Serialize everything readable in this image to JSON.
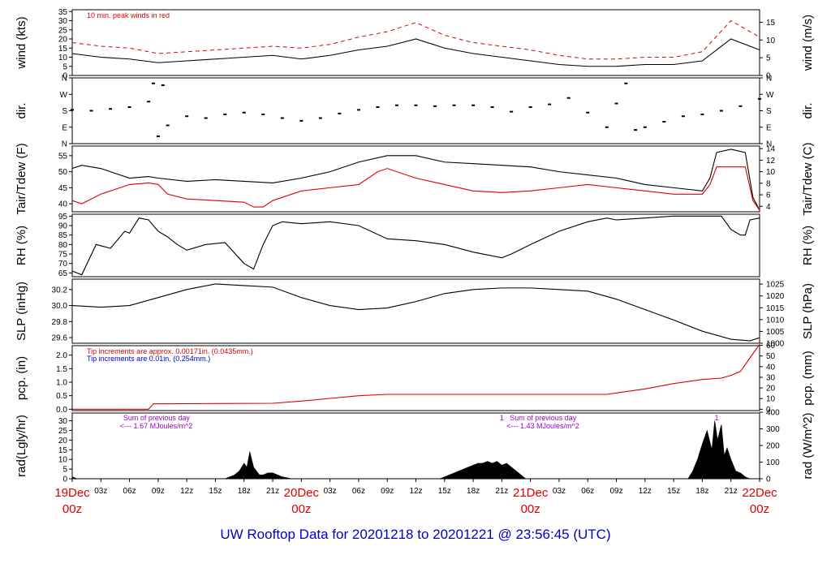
{
  "footer_title": "UW Rooftop Data for 20201218  to  20201221 @ 23:56:45  (UTC)",
  "colors": {
    "red": "#dd0000",
    "blue": "#0000cc",
    "purple": "#9900cc",
    "black": "#000000"
  },
  "time_axis": {
    "ticks_hours": [
      0,
      3,
      6,
      9,
      12,
      15,
      18,
      21,
      24,
      27,
      30,
      33,
      36,
      39,
      42,
      45,
      48,
      51,
      54,
      57,
      60,
      63,
      66,
      69,
      72
    ],
    "minor_labels": [
      "03z",
      "06z",
      "09z",
      "12z",
      "15z",
      "18z",
      "21z",
      "03z",
      "06z",
      "09z",
      "12z",
      "15z",
      "18z",
      "21z",
      "03z",
      "06z",
      "09z",
      "12z",
      "15z",
      "18z",
      "21z"
    ],
    "day_labels": [
      {
        "hour": 0,
        "date": "19Dec",
        "time": "00z"
      },
      {
        "hour": 24,
        "date": "20Dec",
        "time": "00z"
      },
      {
        "hour": 48,
        "date": "21Dec",
        "time": "00z"
      },
      {
        "hour": 72,
        "date": "22Dec",
        "time": "00z"
      }
    ]
  },
  "chart_data": [
    {
      "type": "line",
      "name": "wind",
      "ylabel": "wind (kts)",
      "ylabel_right": "wind (m/s)",
      "yticks": [
        0,
        5,
        10,
        15,
        20,
        25,
        30,
        35
      ],
      "yticks_right": [
        0,
        5,
        10,
        15
      ],
      "ylim": [
        0,
        36
      ],
      "note": "10 min. peak winds in red",
      "series": [
        {
          "color": "#000000",
          "x": [
            0,
            3,
            6,
            9,
            12,
            15,
            18,
            21,
            24,
            27,
            30,
            33,
            36,
            39,
            42,
            45,
            48,
            51,
            54,
            57,
            60,
            63,
            66,
            69,
            72
          ],
          "y": [
            12,
            10,
            9,
            7,
            8,
            9,
            10,
            11,
            9,
            11,
            14,
            16,
            20,
            15,
            12,
            10,
            8,
            6,
            5,
            5,
            6,
            6,
            8,
            20,
            14
          ]
        },
        {
          "name": "peak",
          "color": "#dd0000",
          "x": [
            0,
            3,
            6,
            9,
            12,
            15,
            18,
            21,
            24,
            27,
            30,
            33,
            36,
            39,
            42,
            45,
            48,
            51,
            54,
            57,
            60,
            63,
            66,
            69,
            72
          ],
          "y": [
            18,
            16,
            15,
            12,
            13,
            14,
            15,
            16,
            15,
            17,
            21,
            24,
            29,
            22,
            18,
            16,
            14,
            11,
            9,
            9,
            10,
            10,
            13,
            30,
            21
          ]
        }
      ]
    },
    {
      "type": "scatter",
      "name": "direction",
      "ylabel": "dir.",
      "yticks_labels": [
        "N",
        "E",
        "S",
        "W",
        "N"
      ],
      "ylim": [
        0,
        360
      ],
      "series": [
        {
          "color": "#000000",
          "x": [
            0,
            2,
            4,
            6,
            8,
            8.5,
            9,
            9.5,
            10,
            12,
            14,
            16,
            18,
            20,
            22,
            24,
            26,
            28,
            30,
            32,
            34,
            36,
            38,
            40,
            42,
            44,
            46,
            48,
            50,
            52,
            54,
            56,
            57,
            58,
            59,
            60,
            62,
            64,
            66,
            68,
            70,
            72
          ],
          "y": [
            185,
            180,
            190,
            200,
            230,
            330,
            40,
            320,
            100,
            150,
            140,
            160,
            170,
            160,
            140,
            125,
            140,
            165,
            185,
            200,
            210,
            210,
            205,
            210,
            210,
            200,
            175,
            200,
            215,
            250,
            170,
            90,
            220,
            330,
            75,
            90,
            120,
            150,
            160,
            180,
            205,
            245
          ]
        }
      ]
    },
    {
      "type": "line",
      "name": "temperature",
      "ylabel": "Tair/Tdew (F)",
      "ylabel_right": "Tair/Tdew (C)",
      "yticks": [
        40,
        45,
        50,
        55
      ],
      "yticks_right": [
        4,
        6,
        8,
        10,
        12,
        14
      ],
      "ylim": [
        37.5,
        58
      ],
      "series": [
        {
          "name": "Tair",
          "color": "#000000",
          "x": [
            0,
            1,
            3,
            6,
            8,
            9,
            12,
            15,
            18,
            21,
            24,
            27,
            30,
            33,
            36,
            39,
            42,
            45,
            48,
            51,
            54,
            57,
            60,
            63,
            66,
            66.8,
            67.5,
            69,
            70.5,
            71.3,
            72
          ],
          "y": [
            51,
            52,
            51,
            48,
            48.5,
            48,
            47,
            47.5,
            47,
            46.5,
            48,
            50,
            53,
            55,
            55,
            53,
            52.5,
            52,
            51.5,
            50,
            49,
            48,
            46,
            45,
            44,
            48,
            56,
            57,
            56,
            42,
            38
          ]
        },
        {
          "name": "Tdew",
          "color": "#dd0000",
          "x": [
            0,
            1,
            3,
            6,
            8,
            9,
            10,
            12,
            15,
            18,
            19,
            20,
            21,
            24,
            27,
            30,
            32,
            33,
            36,
            39,
            42,
            45,
            48,
            51,
            54,
            57,
            60,
            63,
            66,
            66.8,
            67.5,
            69,
            70.5,
            71.3,
            72
          ],
          "y": [
            41,
            40,
            43,
            46,
            46.5,
            46,
            43,
            41.5,
            41,
            40.5,
            39,
            39,
            41,
            44,
            45,
            46,
            50,
            51,
            48,
            46,
            44,
            43.5,
            44,
            45,
            46,
            45,
            44,
            43,
            43,
            46,
            51.5,
            51.5,
            51.5,
            41,
            38
          ]
        }
      ]
    },
    {
      "type": "line",
      "name": "humidity",
      "ylabel": "RH (%)",
      "ylabel_right": "RH (%)",
      "yticks": [
        65,
        70,
        75,
        80,
        85,
        90,
        95
      ],
      "ylim": [
        63,
        96
      ],
      "series": [
        {
          "color": "#000000",
          "x": [
            0,
            1,
            2.5,
            4,
            5.5,
            6,
            7,
            8,
            9,
            10,
            11,
            12,
            14,
            16,
            18,
            19,
            20,
            21,
            22,
            24,
            27,
            30,
            33,
            36,
            39,
            42,
            45,
            46,
            48,
            51,
            54,
            56,
            57,
            60,
            63,
            66,
            68,
            69,
            70,
            70.5,
            71,
            72
          ],
          "y": [
            66,
            64,
            80,
            78,
            87,
            86,
            94,
            93,
            87,
            84,
            80,
            77,
            80,
            81,
            70,
            67,
            80,
            90,
            92,
            91,
            92,
            90,
            83,
            82,
            80,
            76,
            73,
            75,
            80,
            87,
            92,
            94,
            93,
            94,
            95,
            95,
            95,
            88,
            85,
            85,
            93,
            94
          ]
        }
      ]
    },
    {
      "type": "line",
      "name": "pressure",
      "ylabel": "SLP (inHg)",
      "ylabel_right": "SLP (hPa)",
      "yticks": [
        29.6,
        29.8,
        30.0,
        30.2
      ],
      "yticks_right": [
        1000,
        1005,
        1010,
        1015,
        1020,
        1025
      ],
      "ylim": [
        29.53,
        30.33
      ],
      "series": [
        {
          "color": "#000000",
          "x": [
            0,
            3,
            6,
            9,
            12,
            15,
            18,
            21,
            24,
            27,
            30,
            33,
            36,
            39,
            42,
            45,
            48,
            51,
            54,
            57,
            60,
            63,
            66,
            69,
            71,
            72
          ],
          "y": [
            30.0,
            29.98,
            30.0,
            30.1,
            30.2,
            30.27,
            30.25,
            30.23,
            30.1,
            30.0,
            29.95,
            29.97,
            30.05,
            30.15,
            30.2,
            30.22,
            30.22,
            30.2,
            30.18,
            30.08,
            29.95,
            29.82,
            29.68,
            29.58,
            29.56,
            29.6
          ]
        }
      ]
    },
    {
      "type": "line",
      "name": "precipitation",
      "ylabel": "pcp. (in)",
      "ylabel_right": "pcp. (mm)",
      "yticks": [
        0.0,
        0.5,
        1.0,
        1.5,
        2.0
      ],
      "yticks_right": [
        0,
        10,
        20,
        30,
        40,
        50,
        60
      ],
      "ylim": [
        -0.05,
        2.35
      ],
      "note_red": "Tip increments are approx. 0.00171in. (0.0435mm.)",
      "note_blue": "Tip increments are 0.01in. (0.254mm.)",
      "series": [
        {
          "color": "#dd0000",
          "x": [
            0,
            8,
            8.5,
            15,
            21,
            24,
            27,
            30,
            33,
            36,
            39,
            42,
            45,
            48,
            51,
            54,
            56,
            57,
            60,
            63,
            66,
            68,
            69,
            70,
            71,
            72
          ],
          "y": [
            0,
            0,
            0.2,
            0.21,
            0.22,
            0.3,
            0.4,
            0.5,
            0.55,
            0.55,
            0.55,
            0.55,
            0.55,
            0.55,
            0.55,
            0.55,
            0.55,
            0.6,
            0.75,
            0.95,
            1.1,
            1.15,
            1.25,
            1.4,
            1.9,
            2.4
          ]
        }
      ]
    },
    {
      "type": "area",
      "name": "radiation",
      "ylabel": "rad(Lgly/hr)",
      "ylabel_right": "rad (W/m^2)",
      "yticks": [
        0,
        5,
        10,
        15,
        20,
        25,
        30
      ],
      "yticks_right": [
        0,
        100,
        200,
        300,
        400
      ],
      "ylim": [
        0,
        34
      ],
      "annotations": [
        {
          "hour": 5,
          "line1": "Sum of previous day",
          "line2": "<--- 1.67 MJoules/m^2"
        },
        {
          "hour": 45.5,
          "line1": "Sum of previous day",
          "line2": "<--- 1.43 MJoules/m^2"
        }
      ],
      "markers": [
        {
          "hour": 45,
          "text": "1"
        },
        {
          "hour": 67.5,
          "text": "1"
        }
      ],
      "series": [
        {
          "color": "#000000",
          "x": [
            0,
            0.5,
            16,
            16.5,
            17,
            17.5,
            18,
            18.3,
            18.6,
            19,
            19.3,
            19.6,
            20,
            20.5,
            21,
            21.5,
            22,
            22.5,
            23,
            24,
            38.5,
            39.5,
            40.5,
            41.5,
            42.5,
            43,
            43.5,
            44,
            44.5,
            45,
            45.5,
            46,
            46.5,
            47,
            47.5,
            64.5,
            65,
            65.5,
            66,
            66.5,
            67,
            67.3,
            67.6,
            68,
            68.3,
            68.6,
            69,
            69.5,
            70,
            70.5,
            71,
            72
          ],
          "y": [
            1,
            0,
            0,
            1,
            2,
            4,
            8,
            6,
            14,
            6,
            4,
            2,
            2,
            3,
            3,
            2,
            1,
            0.5,
            0,
            0,
            0,
            2,
            4,
            6,
            8,
            8,
            9,
            8,
            9,
            7,
            8,
            6,
            4,
            2,
            0,
            0,
            4,
            10,
            18,
            25,
            15,
            30,
            20,
            28,
            12,
            16,
            10,
            4,
            3,
            1,
            0,
            0
          ]
        }
      ]
    }
  ]
}
